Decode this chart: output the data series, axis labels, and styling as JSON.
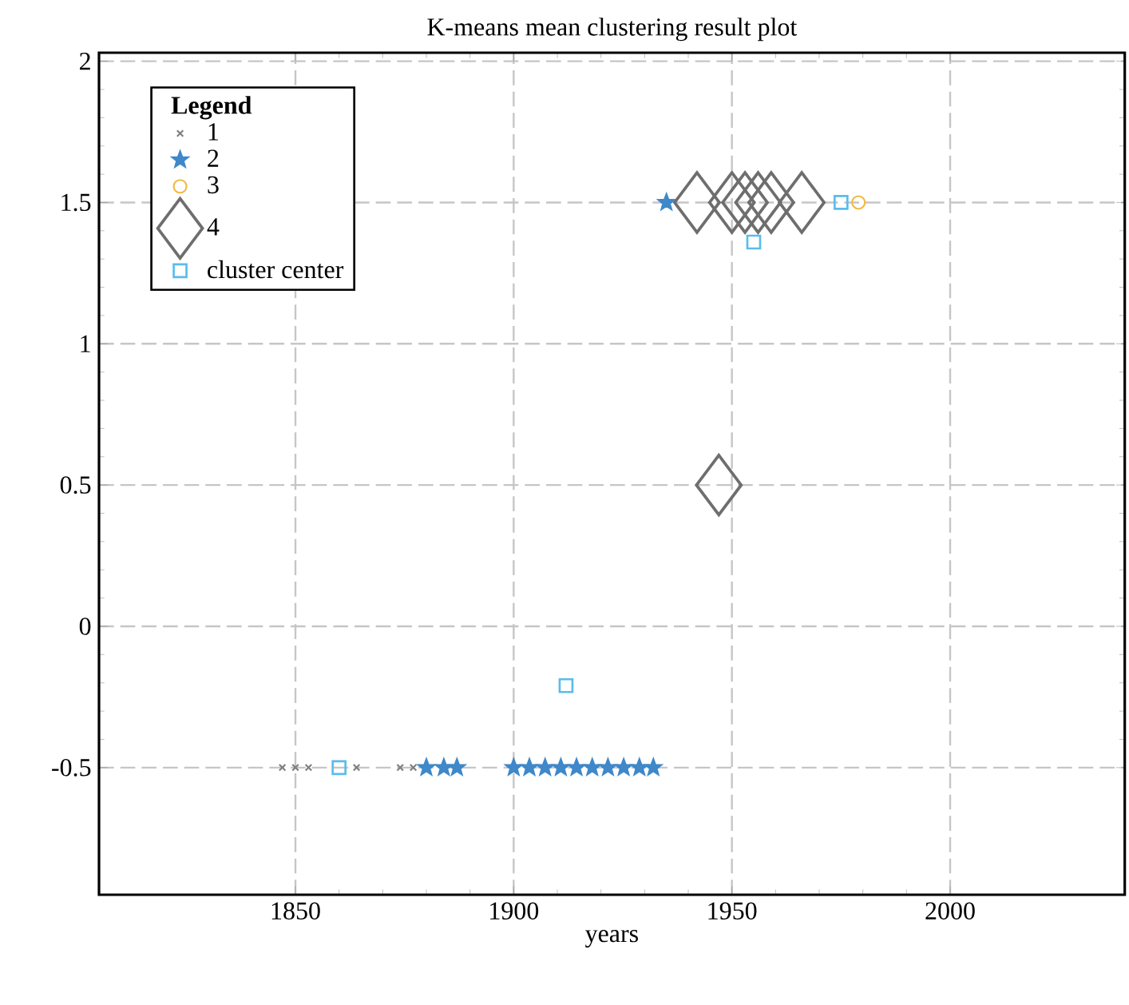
{
  "chart_data": {
    "type": "scatter",
    "title": "K-means mean clustering result plot",
    "xlabel": "years",
    "legend_title": "Legend",
    "xlim": [
      1805,
      2040
    ],
    "xticks": [
      1850,
      1900,
      1950,
      2000
    ],
    "ylim": [
      -0.95,
      2.03
    ],
    "yticks": [
      -0.5,
      0,
      0.5,
      1,
      1.5,
      2
    ],
    "grid": true,
    "legend": "top left",
    "series": [
      {
        "name": "1",
        "color": "#7f7f7f",
        "marker": "cross",
        "x": [
          1847,
          1850,
          1853,
          1864,
          1874,
          1877
        ],
        "values": [
          -0.5,
          -0.5,
          -0.5,
          -0.5,
          -0.5,
          -0.5
        ]
      },
      {
        "name": "2",
        "color": "#3f88c9",
        "marker": "star",
        "x": [
          1880,
          1884,
          1887,
          1900,
          1903.6,
          1907.2,
          1910.8,
          1914.4,
          1918,
          1921.6,
          1925.2,
          1928.8,
          1932,
          1935
        ],
        "values": [
          -0.5,
          -0.5,
          -0.5,
          -0.5,
          -0.5,
          -0.5,
          -0.5,
          -0.5,
          -0.5,
          -0.5,
          -0.5,
          -0.5,
          -0.5,
          1.5
        ]
      },
      {
        "name": "3",
        "color": "#f4b942",
        "marker": "circle",
        "x": [
          1979
        ],
        "values": [
          1.5
        ]
      },
      {
        "name": "4",
        "color": "#6e6e6e",
        "marker": "diamond",
        "x": [
          1942,
          1950,
          1953,
          1956,
          1959,
          1966,
          1947
        ],
        "values": [
          1.5,
          1.5,
          1.5,
          1.5,
          1.5,
          1.5,
          0.5
        ]
      },
      {
        "name": "cluster center",
        "color": "#5bbcec",
        "marker": "square",
        "x": [
          1860,
          1912,
          1955,
          1975
        ],
        "values": [
          -0.5,
          -0.21,
          1.36,
          1.5
        ]
      }
    ]
  }
}
